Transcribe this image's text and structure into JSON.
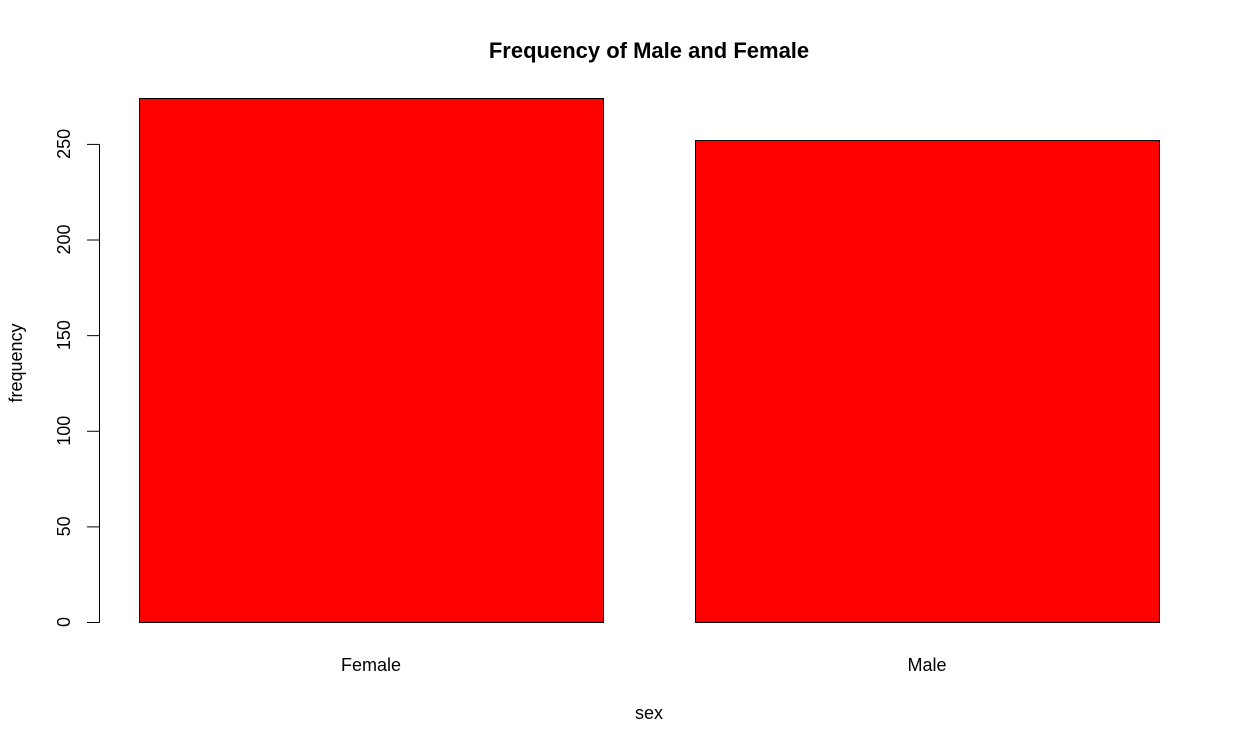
{
  "chart_data": {
    "type": "bar",
    "title": "Frequency of Male and Female",
    "xlabel": "sex",
    "ylabel": "frequency",
    "categories": [
      "Female",
      "Male"
    ],
    "values": [
      274,
      252
    ],
    "ylim": [
      0,
      274
    ],
    "yticks": [
      0,
      50,
      100,
      150,
      200,
      250
    ],
    "bar_color": "#ff0000",
    "grid": false,
    "legend": "none"
  }
}
